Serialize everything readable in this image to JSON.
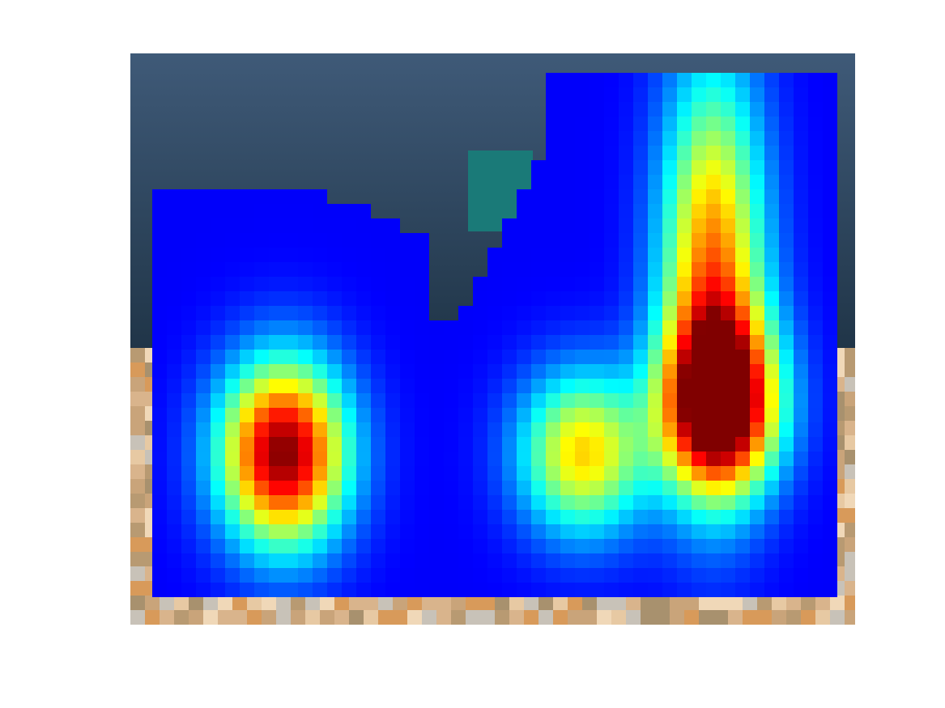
{
  "image": {
    "kind": "heatmap-overlay",
    "colormap": "jet",
    "background_scene": {
      "sky_color_top": "#3f5a78",
      "sky_color_bottom": "#203548",
      "ground_colors": [
        "#d9b48c",
        "#c9a47a",
        "#e7c9a3",
        "#b89a72",
        "#f0d8b8",
        "#a8916e",
        "#d89a5a",
        "#c8c2b8"
      ],
      "object_teal": "#1a7a78"
    },
    "hotspots": [
      {
        "label": "left-peak",
        "peak_intensity": 1.0
      },
      {
        "label": "center-blob",
        "peak_intensity": 0.62
      },
      {
        "label": "right-column-peak",
        "peak_intensity": 1.0
      }
    ]
  }
}
